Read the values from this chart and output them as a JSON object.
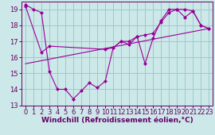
{
  "xlabel": "Windchill (Refroidissement éolien,°C)",
  "xlim": [
    -0.5,
    23.5
  ],
  "ylim": [
    13,
    19.5
  ],
  "yticks": [
    13,
    14,
    15,
    16,
    17,
    18,
    19
  ],
  "xticks": [
    0,
    1,
    2,
    3,
    4,
    5,
    6,
    7,
    8,
    9,
    10,
    11,
    12,
    13,
    14,
    15,
    16,
    17,
    18,
    19,
    20,
    21,
    22,
    23
  ],
  "background_color": "#cce8e8",
  "grid_color": "#99cccc",
  "line_color": "#990099",
  "series1_x": [
    0,
    1,
    2,
    3,
    4,
    5,
    6,
    7,
    8,
    9,
    10,
    11,
    12,
    13,
    14,
    15,
    16,
    17,
    18,
    19,
    20,
    21,
    22,
    23
  ],
  "series1_y": [
    19.3,
    19.0,
    18.8,
    15.1,
    14.0,
    14.0,
    13.4,
    13.9,
    14.4,
    14.1,
    14.5,
    16.6,
    17.0,
    16.8,
    17.3,
    15.6,
    17.2,
    18.3,
    19.0,
    19.0,
    18.5,
    18.9,
    18.0,
    17.8
  ],
  "series2_x": [
    0,
    2,
    3,
    10,
    11,
    12,
    13,
    14,
    15,
    16,
    17,
    18,
    19,
    20,
    21,
    22,
    23
  ],
  "series2_y": [
    19.2,
    16.3,
    16.7,
    16.5,
    16.6,
    17.0,
    17.0,
    17.3,
    17.4,
    17.5,
    18.2,
    18.8,
    19.0,
    19.0,
    18.9,
    18.0,
    17.8
  ],
  "series3_x": [
    0,
    23
  ],
  "series3_y": [
    15.6,
    17.8
  ],
  "font_size_xlabel": 6.5,
  "font_size_ticks": 6.0
}
